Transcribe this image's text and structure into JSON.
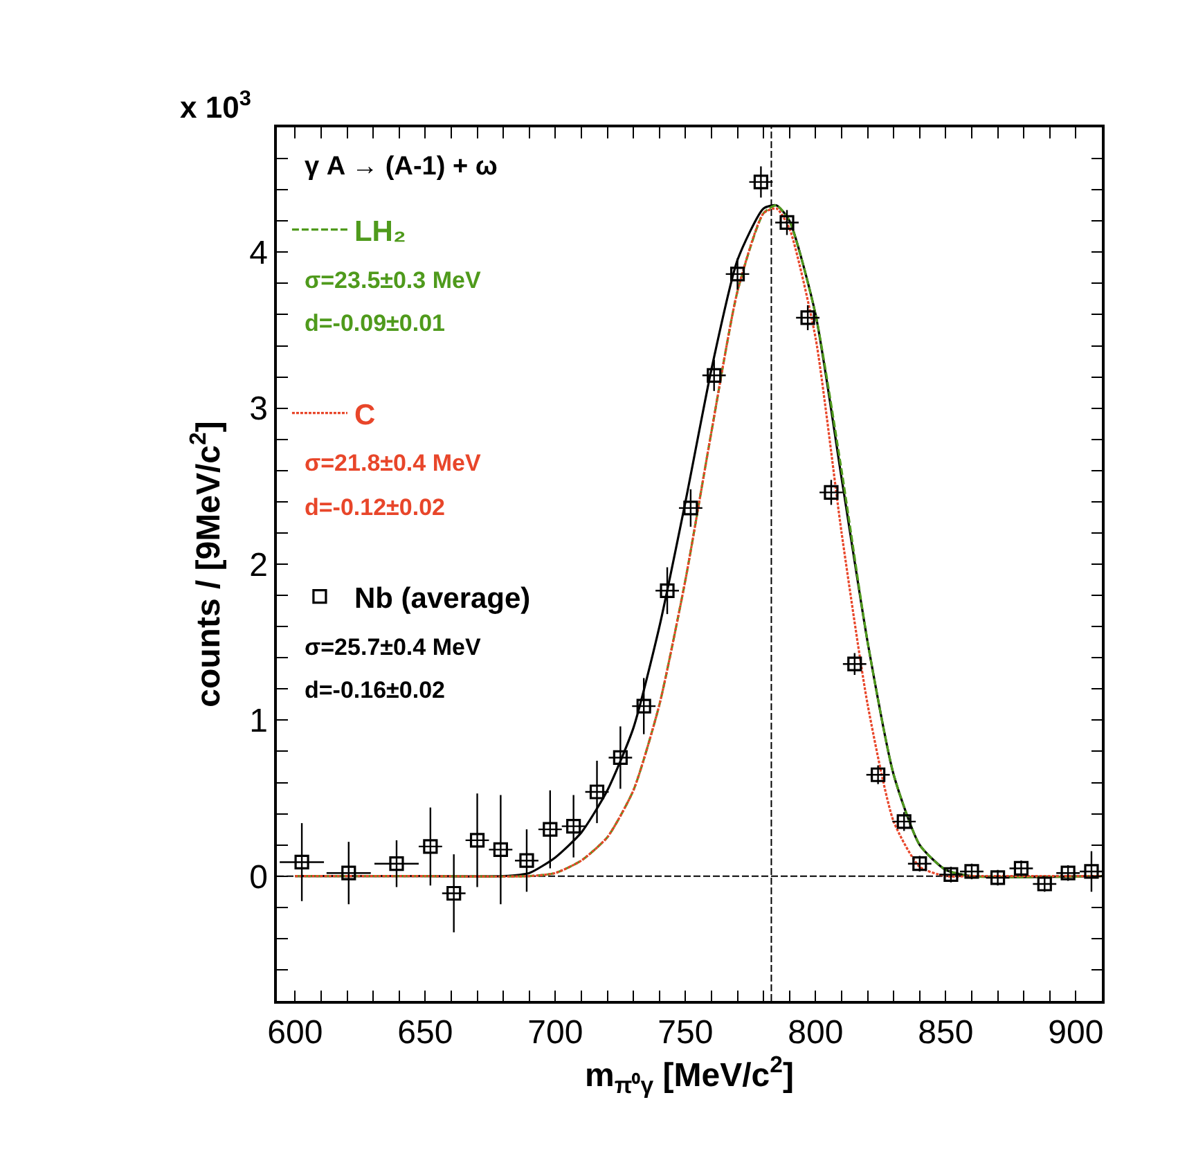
{
  "chart_data": {
    "type": "scatter",
    "xlabel": "m$_{π⁰γ}$ [MeV/c$^{2}$]",
    "ylabel": "counts / [9MeV/c$^{2}$]",
    "annotations": [
      "x 10$^{3}$",
      "γ A → (A-1) + ω",
      "σ=23.5±0.3 MeV",
      "d=-0.09±0.01",
      "σ=21.8±0.4 MeV",
      "d=-0.12±0.02",
      "σ=25.7±0.4 MeV",
      "d=-0.16±0.02"
    ],
    "xlim": [
      593,
      910
    ],
    "ylim": [
      -0.8,
      4.8
    ],
    "xticks": [
      600,
      {
        "value": 610,
        "label": null
      },
      {
        "value": 620,
        "label": null
      },
      {
        "value": 630,
        "label": null
      },
      {
        "value": 640,
        "label": null
      },
      650,
      {
        "value": 660,
        "label": null
      },
      {
        "value": 670,
        "label": null
      },
      {
        "value": 680,
        "label": null
      },
      {
        "value": 690,
        "label": null
      },
      700,
      {
        "value": 710,
        "label": null
      },
      {
        "value": 720,
        "label": null
      },
      {
        "value": 730,
        "label": null
      },
      {
        "value": 740,
        "label": null
      },
      750,
      {
        "value": 760,
        "label": null
      },
      {
        "value": 770,
        "label": null
      },
      {
        "value": 780,
        "label": null
      },
      {
        "value": 790,
        "label": null
      },
      800,
      {
        "value": 810,
        "label": null
      },
      {
        "value": 820,
        "label": null
      },
      {
        "value": 830,
        "label": null
      },
      {
        "value": 840,
        "label": null
      },
      850,
      {
        "value": 860,
        "label": null
      },
      {
        "value": 870,
        "label": null
      },
      {
        "value": 880,
        "label": null
      },
      {
        "value": 890,
        "label": null
      },
      900
    ],
    "yticks": [
      {
        "value": -0.6,
        "label": null
      },
      {
        "value": -0.4,
        "label": null
      },
      {
        "value": -0.2,
        "label": null
      },
      0,
      {
        "value": 0.2,
        "label": null
      },
      {
        "value": 0.4,
        "label": null
      },
      {
        "value": 0.6,
        "label": null
      },
      {
        "value": 0.8,
        "label": null
      },
      1,
      {
        "value": 1.2,
        "label": null
      },
      {
        "value": 1.4,
        "label": null
      },
      {
        "value": 1.6,
        "label": null
      },
      {
        "value": 1.8,
        "label": null
      },
      2,
      {
        "value": 2.2,
        "label": null
      },
      {
        "value": 2.4,
        "label": null
      },
      {
        "value": 2.6,
        "label": null
      },
      {
        "value": 2.8,
        "label": null
      },
      3,
      {
        "value": 3.2,
        "label": null
      },
      {
        "value": 3.4,
        "label": null
      },
      {
        "value": 3.6,
        "label": null
      },
      {
        "value": 3.8,
        "label": null
      },
      4,
      {
        "value": 4.2,
        "label": null
      },
      {
        "value": 4.4,
        "label": null
      },
      {
        "value": 4.6,
        "label": null
      }
    ],
    "grid": false,
    "legend": "top left",
    "ref_lines": [
      {
        "axis": "y",
        "value": 0,
        "line_style": "dashed",
        "color": "#000000"
      },
      {
        "axis": "x",
        "value": 783,
        "line_style": "dashed",
        "color": "#000000"
      }
    ],
    "series": [
      {
        "type": "line",
        "color": "#000000",
        "line_style": "solid",
        "marker": "none",
        "x": [
          600,
          650,
          680,
          690,
          700,
          710,
          720,
          730,
          740,
          750,
          760,
          770,
          780,
          785,
          790,
          800,
          810,
          820,
          830,
          840,
          850,
          860,
          910
        ],
        "values": [
          0,
          0,
          0,
          0.02,
          0.12,
          0.28,
          0.55,
          0.95,
          1.6,
          2.4,
          3.25,
          3.95,
          4.28,
          4.3,
          4.2,
          3.6,
          2.55,
          1.5,
          0.65,
          0.2,
          0.04,
          0,
          0
        ]
      },
      {
        "type": "line",
        "name": "LH₂",
        "color": "#4f9a1c",
        "line_style": "dashed",
        "marker": "none",
        "x": [
          600,
          650,
          690,
          700,
          710,
          720,
          730,
          740,
          750,
          760,
          770,
          780,
          785,
          790,
          800,
          810,
          820,
          830,
          840,
          850,
          860,
          910
        ],
        "values": [
          0,
          0,
          0,
          0.02,
          0.1,
          0.25,
          0.55,
          1.1,
          1.9,
          2.85,
          3.75,
          4.25,
          4.3,
          4.2,
          3.6,
          2.6,
          1.5,
          0.65,
          0.2,
          0.04,
          0,
          0
        ]
      },
      {
        "type": "line",
        "name": "C",
        "color": "#e8462a",
        "line_style": "dotted",
        "marker": "none",
        "x": [
          600,
          650,
          690,
          700,
          710,
          720,
          730,
          740,
          750,
          760,
          770,
          780,
          785,
          790,
          800,
          810,
          820,
          830,
          840,
          850,
          860,
          910
        ],
        "values": [
          0,
          0,
          0,
          0.02,
          0.1,
          0.25,
          0.55,
          1.1,
          1.9,
          2.85,
          3.75,
          4.25,
          4.28,
          4.15,
          3.45,
          2.2,
          1.1,
          0.35,
          0.06,
          0,
          0,
          0
        ]
      },
      {
        "name": "Nb (average)",
        "color": "#000000",
        "marker": "square",
        "x": [
          602.6,
          620.6,
          639,
          652,
          661,
          670,
          679,
          689,
          698,
          707,
          716,
          725,
          734,
          743,
          752,
          761,
          770,
          779,
          789,
          797,
          806,
          815,
          824,
          834,
          840,
          852,
          860,
          870,
          879,
          888,
          897,
          906
        ],
        "values": [
          0.09,
          0.02,
          0.08,
          0.19,
          -0.11,
          0.23,
          0.17,
          0.1,
          0.3,
          0.32,
          0.54,
          0.76,
          1.09,
          1.83,
          2.36,
          3.21,
          3.86,
          4.45,
          4.19,
          3.58,
          2.46,
          1.36,
          0.65,
          0.35,
          0.08,
          0.01,
          0.03,
          -0.01,
          0.05,
          -0.05,
          0.02,
          0.03
        ],
        "errors": [
          0.25,
          0.2,
          0.15,
          0.25,
          0.25,
          0.3,
          0.35,
          0.2,
          0.25,
          0.2,
          0.2,
          0.2,
          0.18,
          0.15,
          0.12,
          0.1,
          0.1,
          0.1,
          0.08,
          0.08,
          0.08,
          0.07,
          0.06,
          0.06,
          0.05,
          0.05,
          0.05,
          0.05,
          0.05,
          0.05,
          0.05,
          0.13
        ],
        "xerrors": [
          8.5,
          8.5,
          8.5,
          4.5,
          4.5,
          4.5,
          4.5,
          4.5,
          4.5,
          4.5,
          4.5,
          4.5,
          4.5,
          4.5,
          4.5,
          4.5,
          4.5,
          4.5,
          4.5,
          4.5,
          4.5,
          4.5,
          4.5,
          4.5,
          4.5,
          4.5,
          4.5,
          4.5,
          4.5,
          4.5,
          4.5,
          4.5
        ]
      }
    ]
  }
}
